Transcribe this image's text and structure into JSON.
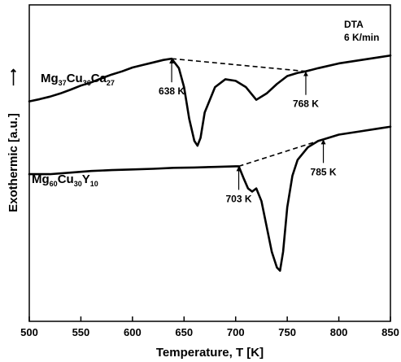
{
  "chart_data": {
    "type": "line",
    "title": "",
    "xlabel": "Temperature, T [K]",
    "ylabel": "Exothermic [a.u.]",
    "ylabel_arrow": "⟶",
    "xlim": [
      500,
      850
    ],
    "ylim": [
      0,
      100
    ],
    "xticks": [
      500,
      550,
      600,
      650,
      700,
      750,
      800,
      850
    ],
    "grid": false,
    "corner_label": {
      "line1": "DTA",
      "line2": "6 K/min"
    },
    "series": [
      {
        "name": "Mg37Cu36Ca27",
        "name_parts": [
          {
            "t": "Mg",
            "sub": false
          },
          {
            "t": "37",
            "sub": true
          },
          {
            "t": "Cu",
            "sub": false
          },
          {
            "t": "36",
            "sub": true
          },
          {
            "t": "Ca",
            "sub": false
          },
          {
            "t": "27",
            "sub": true
          }
        ],
        "x": [
          500,
          510,
          520,
          530,
          540,
          550,
          560,
          570,
          580,
          590,
          600,
          610,
          620,
          630,
          638,
          645,
          650,
          655,
          660,
          663,
          666,
          670,
          680,
          690,
          700,
          710,
          720,
          730,
          740,
          750,
          760,
          768,
          780,
          800,
          820,
          840,
          850
        ],
        "y": [
          69.5,
          70.2,
          71.0,
          72.0,
          73.2,
          74.5,
          75.5,
          76.8,
          78.0,
          79.0,
          80.2,
          81.0,
          81.8,
          82.6,
          83.0,
          80.0,
          74.0,
          64.0,
          57.0,
          55.5,
          58.0,
          66.0,
          74.0,
          76.5,
          76.0,
          74.0,
          70.0,
          72.0,
          75.0,
          77.5,
          78.5,
          79.0,
          80.0,
          81.5,
          82.5,
          83.5,
          84.0
        ]
      },
      {
        "name": "Mg60Cu30Y10",
        "name_parts": [
          {
            "t": "Mg",
            "sub": false
          },
          {
            "t": "60",
            "sub": true
          },
          {
            "t": "Cu",
            "sub": false
          },
          {
            "t": "30",
            "sub": true
          },
          {
            "t": "Y",
            "sub": false
          },
          {
            "t": "10",
            "sub": true
          }
        ],
        "x": [
          500,
          520,
          540,
          560,
          580,
          600,
          620,
          640,
          660,
          680,
          700,
          703,
          708,
          712,
          716,
          720,
          725,
          730,
          735,
          740,
          743,
          746,
          750,
          755,
          760,
          770,
          780,
          785,
          800,
          820,
          840,
          850
        ],
        "y": [
          46.5,
          46.5,
          47.0,
          47.5,
          47.8,
          48.0,
          48.2,
          48.5,
          48.6,
          48.8,
          49.0,
          49.0,
          45.0,
          42.0,
          41.0,
          42.0,
          38.0,
          30.0,
          22.0,
          17.0,
          16.0,
          22.0,
          36.0,
          46.0,
          51.0,
          55.0,
          57.0,
          57.5,
          59.0,
          60.0,
          61.0,
          61.5
        ]
      }
    ],
    "baselines": [
      {
        "series": "Mg37Cu36Ca27",
        "from": [
          638,
          83.0
        ],
        "to": [
          768,
          79.0
        ]
      },
      {
        "series": "Mg60Cu30Y10",
        "from": [
          703,
          49.0
        ],
        "to": [
          785,
          57.5
        ]
      }
    ],
    "annotations": [
      {
        "text": "638 K",
        "x": 638,
        "y": 83.0,
        "direction": "below"
      },
      {
        "text": "768 K",
        "x": 768,
        "y": 79.0,
        "direction": "below"
      },
      {
        "text": "703 K",
        "x": 703,
        "y": 49.0,
        "direction": "below"
      },
      {
        "text": "785 K",
        "x": 785,
        "y": 57.5,
        "direction": "below"
      }
    ]
  }
}
